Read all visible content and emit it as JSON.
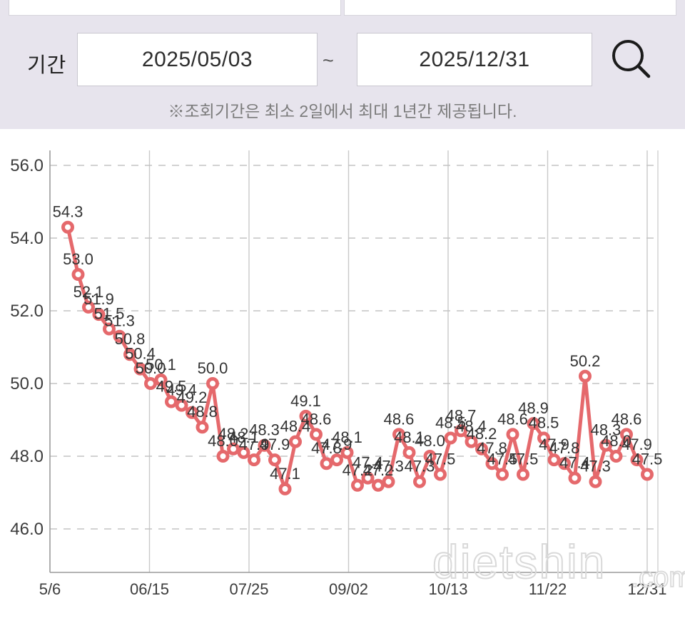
{
  "header": {
    "period_label": "기간",
    "date_from": "2025/05/03",
    "separator": "~",
    "date_to": "2025/12/31",
    "search_icon": "magnifier",
    "notice": "※조회기간은 최소 2일에서 최대 1년간 제공됩니다."
  },
  "watermark": {
    "text": "dietshin",
    "suffix": ".com"
  },
  "colors": {
    "header_background": "#e7e4ed",
    "line": "#e5696c",
    "marker_fill": "#ffffff",
    "grid": "#c9c9c9",
    "axis": "#9b9b9b",
    "tick_text": "#3c3c3c",
    "value_text": "#333333",
    "watermark": "#d9d9d9"
  },
  "chart_data": {
    "type": "line",
    "title": "",
    "xlabel": "",
    "ylabel": "",
    "values": [
      54.3,
      53.0,
      52.1,
      51.9,
      51.5,
      51.3,
      50.8,
      50.4,
      50.0,
      50.1,
      49.5,
      49.4,
      49.2,
      48.8,
      50.0,
      48.0,
      48.2,
      48.1,
      47.9,
      48.3,
      47.9,
      47.1,
      48.4,
      49.1,
      48.6,
      47.8,
      47.9,
      48.1,
      47.2,
      47.4,
      47.2,
      47.3,
      48.6,
      48.1,
      47.3,
      48.0,
      47.5,
      48.5,
      48.7,
      48.4,
      48.2,
      47.8,
      47.5,
      48.6,
      47.5,
      48.9,
      48.5,
      47.9,
      47.8,
      47.4,
      50.2,
      47.3,
      48.3,
      48.0,
      48.6,
      47.9,
      47.5
    ],
    "point_labels_shown": true,
    "x_tick_labels": [
      "5/6",
      "06/15",
      "07/25",
      "09/02",
      "10/13",
      "11/22",
      "12/31"
    ],
    "y_ticks": [
      56.0,
      54.0,
      52.0,
      50.0,
      48.0,
      46.0
    ],
    "y_tick_labels": [
      "56.0",
      "54.0",
      "52.0",
      "50.0",
      "48.0",
      "46.0"
    ],
    "ylim": [
      44.8,
      56.4
    ],
    "grid": {
      "horizontal": "dashed",
      "vertical": "solid"
    },
    "legend": "none"
  }
}
